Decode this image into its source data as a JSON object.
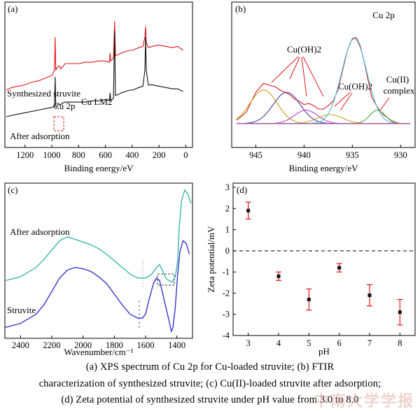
{
  "caption": {
    "line1": "(a) XPS spectrum of Cu 2p for Cu-loaded struvite; (b) FTIR",
    "line2": "characterization of synthesized struvite; (c) Cu(II)-loaded struvite after adsorption;",
    "line3": "(d) Zeta potential of synthesized struvite under pH value from 3.0 to 8.0"
  },
  "watermark": "中南大学学报",
  "colors": {
    "red": "#e0161b",
    "black": "#111111",
    "teal": "#2fb3a0",
    "blue": "#2a26c8",
    "orange": "#c8a020",
    "navy": "#3a3aa0",
    "purple": "#c040c0",
    "cyan": "#40c0e0",
    "green": "#40b040",
    "magenta": "#b040b0",
    "errorbar": "#e0161b"
  },
  "chart_data": [
    {
      "panel": "(a)",
      "type": "line",
      "xlabel": "Binding energy/eV",
      "xticks": [
        1200,
        1000,
        800,
        600,
        400,
        200,
        0
      ],
      "xlim": [
        1350,
        -50
      ],
      "series": [
        {
          "name": "Synthesized struvite",
          "color": "#e0161b",
          "x": [
            1340,
            1300,
            1250,
            1200,
            1150,
            1100,
            1050,
            1000,
            980,
            975,
            970,
            965,
            950,
            940,
            933,
            925,
            900,
            850,
            800,
            750,
            700,
            650,
            600,
            570,
            565,
            560,
            540,
            531,
            525,
            500,
            480,
            450,
            420,
            400,
            350,
            320,
            305,
            300,
            295,
            280,
            250,
            200,
            150,
            100,
            60,
            20
          ],
          "y": [
            0.4,
            0.42,
            0.43,
            0.44,
            0.46,
            0.47,
            0.49,
            0.51,
            0.55,
            0.8,
            0.55,
            0.56,
            0.58,
            0.58,
            0.56,
            0.57,
            0.6,
            0.6,
            0.6,
            0.61,
            0.61,
            0.62,
            0.62,
            0.61,
            0.68,
            0.62,
            0.64,
            0.92,
            0.66,
            0.67,
            0.68,
            0.69,
            0.7,
            0.7,
            0.72,
            0.73,
            0.8,
            0.88,
            0.76,
            0.72,
            0.73,
            0.74,
            0.73,
            0.72,
            0.73,
            0.7
          ]
        },
        {
          "name": "After adsorption",
          "color": "#111111",
          "x": [
            1340,
            1300,
            1250,
            1200,
            1150,
            1100,
            1050,
            1000,
            980,
            975,
            970,
            965,
            950,
            940,
            933,
            925,
            900,
            850,
            800,
            750,
            700,
            650,
            600,
            570,
            565,
            560,
            540,
            531,
            525,
            500,
            480,
            450,
            420,
            400,
            350,
            320,
            305,
            300,
            295,
            280,
            250,
            200,
            150,
            100,
            60,
            20
          ],
          "y": [
            0.2,
            0.21,
            0.22,
            0.23,
            0.24,
            0.25,
            0.26,
            0.27,
            0.28,
            0.5,
            0.28,
            0.27,
            0.3,
            0.29,
            0.29,
            0.3,
            0.31,
            0.31,
            0.31,
            0.31,
            0.32,
            0.32,
            0.33,
            0.32,
            0.38,
            0.32,
            0.34,
            0.85,
            0.36,
            0.37,
            0.38,
            0.39,
            0.4,
            0.4,
            0.42,
            0.43,
            0.55,
            0.8,
            0.55,
            0.44,
            0.44,
            0.43,
            0.42,
            0.41,
            0.41,
            0.39
          ]
        }
      ],
      "annotations": [
        "Synthesized struvite",
        "After adsorption",
        "Cu 2p",
        "Cu LM2"
      ]
    },
    {
      "panel": "(b)",
      "type": "line",
      "title": "Cu 2p",
      "xlabel": "Binding energy/eV",
      "xticks": [
        945,
        940,
        935,
        930
      ],
      "xlim": [
        947.5,
        928.5
      ],
      "series": [
        {
          "name": "data",
          "color": "#e0161b",
          "x": [
            947,
            946,
            945,
            944.2,
            943.5,
            943,
            942.5,
            942,
            941.5,
            941,
            940.5,
            940,
            939.5,
            939,
            938.5,
            938,
            937.5,
            937,
            936.5,
            936,
            935.5,
            935,
            934.6,
            934.2,
            933.8,
            933.3,
            933,
            932.5,
            932.2,
            931.8,
            931.5,
            931,
            930.5,
            930,
            929.5,
            929
          ],
          "y": [
            0.05,
            0.12,
            0.3,
            0.38,
            0.36,
            0.35,
            0.32,
            0.3,
            0.28,
            0.24,
            0.22,
            0.19,
            0.2,
            0.18,
            0.15,
            0.15,
            0.18,
            0.22,
            0.32,
            0.5,
            0.68,
            0.78,
            0.79,
            0.72,
            0.58,
            0.38,
            0.26,
            0.18,
            0.14,
            0.1,
            0.08,
            0.05,
            0.03,
            0.02,
            0.02,
            0.02
          ]
        },
        {
          "name": "Cu(OH)2 peak 1",
          "color": "#c8a020",
          "center": 944.2,
          "height": 0.3,
          "width": 1.4
        },
        {
          "name": "Cu(OH)2 peak 2",
          "color": "#3a3aa0",
          "center": 941.8,
          "height": 0.28,
          "width": 1.4
        },
        {
          "name": "Cu(OH)2 peak 3",
          "color": "#c040c0",
          "center": 939.8,
          "height": 0.12,
          "width": 1.2
        },
        {
          "name": "Cu(OH)2 peak 4",
          "color": "#c8a020",
          "center": 937.3,
          "height": 0.08,
          "width": 1.3
        },
        {
          "name": "main peak",
          "color": "#40c0e0",
          "center": 934.8,
          "height": 0.76,
          "width": 1.3
        },
        {
          "name": "Cu(II) complex",
          "color": "#40b040",
          "center": 932.4,
          "height": 0.12,
          "width": 0.8
        },
        {
          "name": "background",
          "color": "#b040b0",
          "x": [
            947,
            929
          ],
          "y": [
            0.02,
            0.02
          ]
        }
      ],
      "annotations": [
        "Cu(OH)2",
        "Cu(OH)2",
        "Cu(II) complex"
      ]
    },
    {
      "panel": "(c)",
      "type": "line",
      "xlabel": "Wavenumber/cm⁻¹",
      "xticks": [
        2400,
        2200,
        2000,
        1800,
        1600,
        1400
      ],
      "xlim": [
        2500,
        1300
      ],
      "series": [
        {
          "name": "After adsorption",
          "color": "#2fb3a0",
          "x": [
            2500,
            2400,
            2300,
            2250,
            2200,
            2150,
            2100,
            2050,
            2000,
            1950,
            1900,
            1850,
            1800,
            1750,
            1700,
            1650,
            1600,
            1560,
            1530,
            1510,
            1490,
            1470,
            1450,
            1430,
            1410,
            1395,
            1385,
            1370,
            1350,
            1330,
            1310
          ],
          "y": [
            0.3,
            0.33,
            0.4,
            0.46,
            0.53,
            0.6,
            0.63,
            0.61,
            0.59,
            0.57,
            0.54,
            0.5,
            0.45,
            0.4,
            0.35,
            0.32,
            0.32,
            0.35,
            0.4,
            0.42,
            0.37,
            0.32,
            0.3,
            0.29,
            0.33,
            0.45,
            0.7,
            0.9,
            0.98,
            0.95,
            0.88
          ]
        },
        {
          "name": "Struvite",
          "color": "#2a26c8",
          "x": [
            2500,
            2400,
            2300,
            2250,
            2200,
            2150,
            2100,
            2050,
            2000,
            1950,
            1900,
            1850,
            1800,
            1750,
            1700,
            1650,
            1620,
            1600,
            1580,
            1550,
            1530,
            1510,
            1490,
            1470,
            1450,
            1435,
            1425,
            1410,
            1395,
            1380,
            1360,
            1340,
            1320
          ],
          "y": [
            -0.05,
            -0.02,
            0.05,
            0.12,
            0.22,
            0.32,
            0.38,
            0.4,
            0.39,
            0.37,
            0.33,
            0.28,
            0.2,
            0.12,
            0.05,
            0.02,
            0.02,
            0.05,
            0.15,
            0.28,
            0.32,
            0.3,
            0.2,
            0.1,
            0.0,
            -0.08,
            -0.05,
            0.1,
            0.35,
            0.52,
            0.6,
            0.58,
            0.5
          ]
        }
      ],
      "annotations": [
        "After adsorption",
        "Struvite"
      ]
    },
    {
      "panel": "(d)",
      "type": "scatter",
      "xlabel": "pH",
      "ylabel": "Zeta potential/mV",
      "x": [
        3,
        4,
        5,
        6,
        7,
        8
      ],
      "y": [
        1.9,
        -1.2,
        -2.3,
        -0.8,
        -2.1,
        -2.9
      ],
      "yerr": [
        0.4,
        0.2,
        0.5,
        0.2,
        0.5,
        0.6
      ],
      "xlim": [
        2.5,
        8.5
      ],
      "ylim": [
        -4,
        3
      ],
      "xticks": [
        3,
        4,
        5,
        6,
        7,
        8
      ],
      "yticks": [
        3,
        2,
        1,
        0,
        -1,
        -2,
        -3,
        -4
      ],
      "zero_line": "dashed"
    }
  ]
}
